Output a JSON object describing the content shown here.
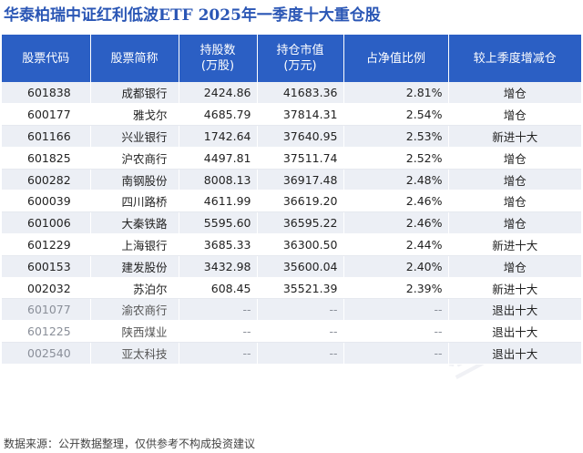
{
  "title": "华泰柏瑞中证红利低波ETF  2025年一季度十大重仓股",
  "table": {
    "headers": {
      "code": "股票代码",
      "name": "股票简称",
      "shares_line1": "持股数",
      "shares_line2": "(万股)",
      "value_line1": "持仓市值",
      "value_line2": "(万元)",
      "ratio": "占净值比例",
      "change": "较上季度增减仓"
    },
    "rows": [
      {
        "code": "601838",
        "name": "成都银行",
        "shares": "2424.86",
        "value": "41683.36",
        "ratio": "2.81%",
        "change": "增仓",
        "status": "up"
      },
      {
        "code": "600177",
        "name": "雅戈尔",
        "shares": "4685.79",
        "value": "37814.31",
        "ratio": "2.54%",
        "change": "增仓",
        "status": "up"
      },
      {
        "code": "601166",
        "name": "兴业银行",
        "shares": "1742.64",
        "value": "37640.95",
        "ratio": "2.53%",
        "change": "新进十大",
        "status": "up"
      },
      {
        "code": "601825",
        "name": "沪农商行",
        "shares": "4497.81",
        "value": "37511.74",
        "ratio": "2.52%",
        "change": "增仓",
        "status": "up"
      },
      {
        "code": "600282",
        "name": "南钢股份",
        "shares": "8008.13",
        "value": "36917.48",
        "ratio": "2.48%",
        "change": "增仓",
        "status": "up"
      },
      {
        "code": "600039",
        "name": "四川路桥",
        "shares": "4611.99",
        "value": "36619.20",
        "ratio": "2.46%",
        "change": "增仓",
        "status": "up"
      },
      {
        "code": "601006",
        "name": "大秦铁路",
        "shares": "5595.60",
        "value": "36595.22",
        "ratio": "2.46%",
        "change": "增仓",
        "status": "up"
      },
      {
        "code": "601229",
        "name": "上海银行",
        "shares": "3685.33",
        "value": "36300.50",
        "ratio": "2.44%",
        "change": "新进十大",
        "status": "up"
      },
      {
        "code": "600153",
        "name": "建发股份",
        "shares": "3432.98",
        "value": "35600.04",
        "ratio": "2.40%",
        "change": "增仓",
        "status": "up"
      },
      {
        "code": "002032",
        "name": "苏泊尔",
        "shares": "608.45",
        "value": "35521.39",
        "ratio": "2.39%",
        "change": "新进十大",
        "status": "up"
      },
      {
        "code": "601077",
        "name": "渝农商行",
        "shares": "--",
        "value": "--",
        "ratio": "--",
        "change": "退出十大",
        "status": "exit"
      },
      {
        "code": "601225",
        "name": "陕西煤业",
        "shares": "--",
        "value": "--",
        "ratio": "--",
        "change": "退出十大",
        "status": "exit"
      },
      {
        "code": "002540",
        "name": "亚太科技",
        "shares": "--",
        "value": "--",
        "ratio": "--",
        "change": "退出十大",
        "status": "exit"
      }
    ]
  },
  "footer": "数据来源：公开数据整理，仅供参考不构成投资建议",
  "colors": {
    "title": "#2a56b5",
    "header_bg": "#2b5fc4",
    "stripe": "#eceff5",
    "increase": "#e02020",
    "exit": "#1f9a3f"
  }
}
